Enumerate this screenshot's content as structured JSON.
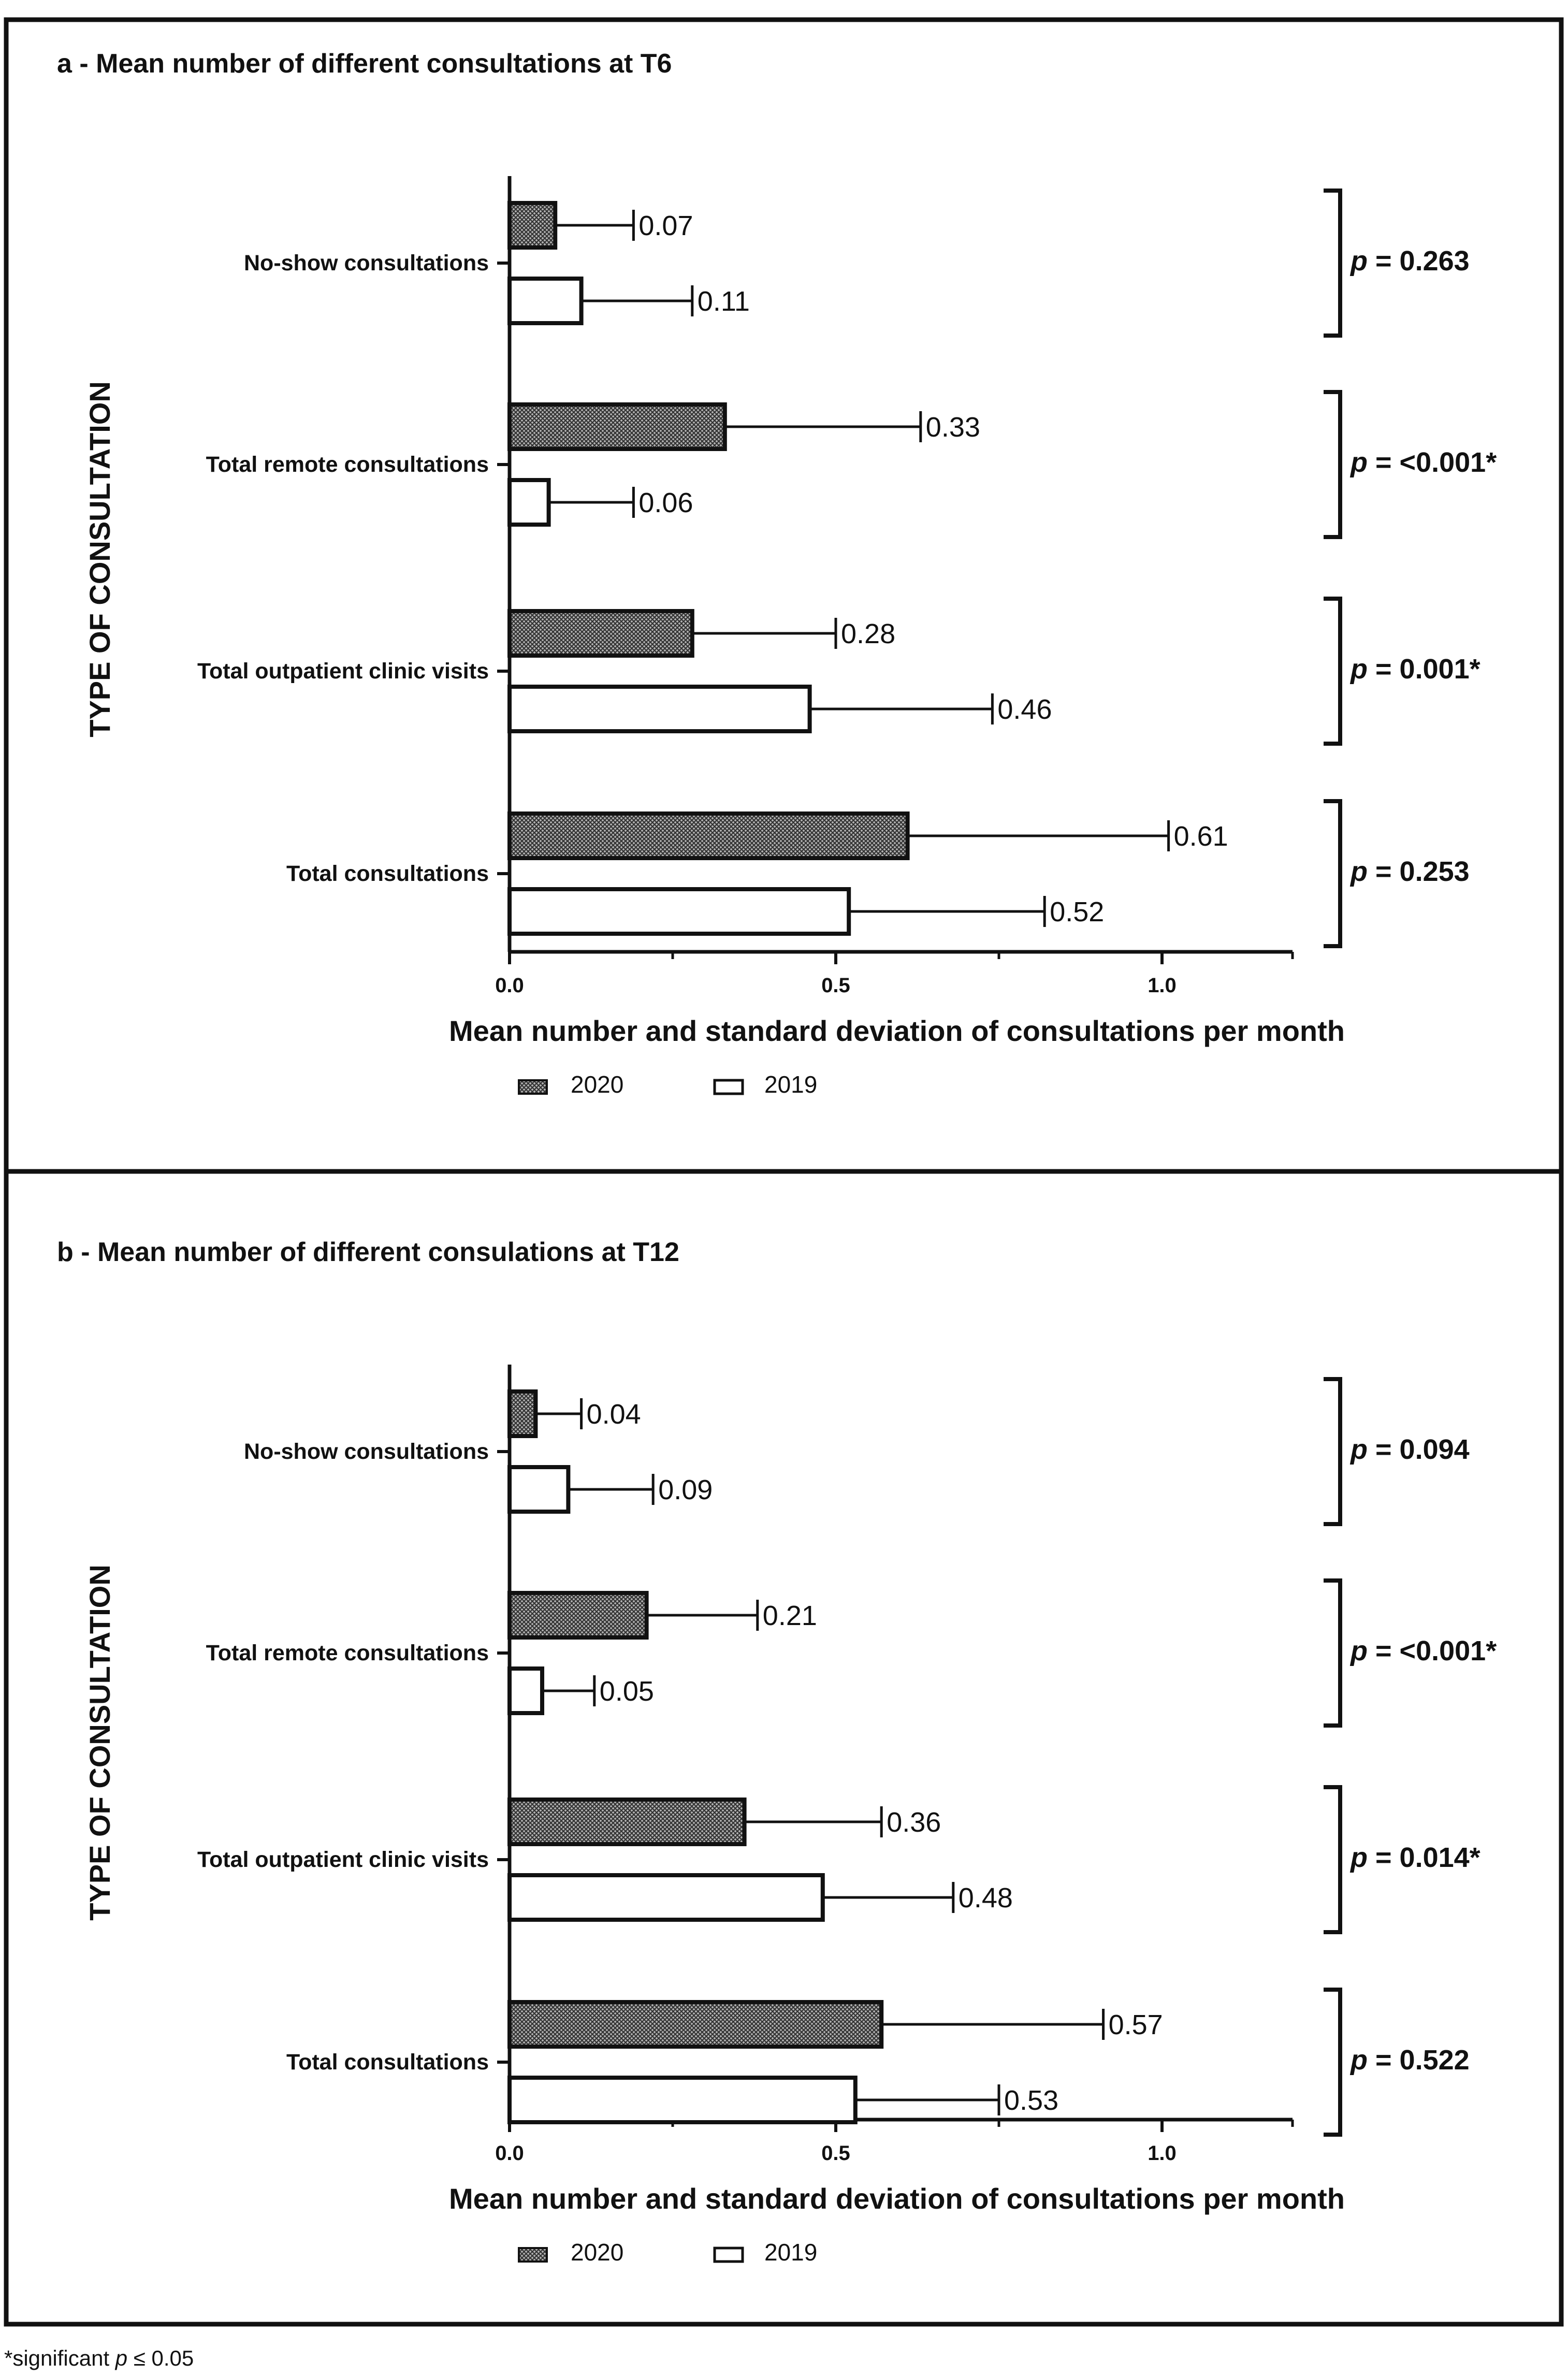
{
  "footnote": {
    "prefix": "*significant ",
    "p": "p",
    "suffix": " ≤ 0.05"
  },
  "legend_labels": [
    "2020",
    "2019"
  ],
  "colors": {
    "bar_2020_fill": "#8a8a8a",
    "bar_2019_fill": "#ffffff",
    "stroke": "#111111"
  },
  "chart_data": [
    {
      "type": "bar",
      "orientation": "horizontal",
      "title": "a - Mean number of different consultations at T6",
      "xlabel": "Mean number and standard deviation of consultations per month",
      "ylabel": "TYPE OF CONSULTATION",
      "xlim": [
        0,
        1.2
      ],
      "xticks": [
        0.0,
        0.5,
        1.0
      ],
      "xtick_labels": [
        "0.0",
        "0.5",
        "1.0"
      ],
      "categories": [
        "No-show consultations",
        "Total remote consultations",
        "Total outpatient clinic visits",
        "Total consultations"
      ],
      "series": [
        {
          "name": "2020",
          "pattern": "crosshatch",
          "values": [
            0.07,
            0.33,
            0.28,
            0.61
          ],
          "error_upper": [
            0.19,
            0.63,
            0.5,
            1.01
          ],
          "labels": [
            "0.07",
            "0.33",
            "0.28",
            "0.61"
          ]
        },
        {
          "name": "2019",
          "pattern": "none",
          "values": [
            0.11,
            0.06,
            0.46,
            0.52
          ],
          "error_upper": [
            0.28,
            0.19,
            0.74,
            0.82
          ],
          "labels": [
            "0.11",
            "0.06",
            "0.46",
            "0.52"
          ]
        }
      ],
      "pvalues": [
        {
          "value": "0.263",
          "significant": false
        },
        {
          "value": "<0.001*",
          "significant": true
        },
        {
          "value": "0.001*",
          "significant": true
        },
        {
          "value": "0.253",
          "significant": false
        }
      ]
    },
    {
      "type": "bar",
      "orientation": "horizontal",
      "title": "b - Mean number of different consulations at T12",
      "xlabel": "Mean number and standard deviation of consultations per month",
      "ylabel": "TYPE OF CONSULTATION",
      "xlim": [
        0,
        1.2
      ],
      "xticks": [
        0.0,
        0.5,
        1.0
      ],
      "xtick_labels": [
        "0.0",
        "0.5",
        "1.0"
      ],
      "categories": [
        "No-show consultations",
        "Total remote consultations",
        "Total outpatient clinic visits",
        "Total consultations"
      ],
      "series": [
        {
          "name": "2020",
          "pattern": "crosshatch",
          "values": [
            0.04,
            0.21,
            0.36,
            0.57
          ],
          "error_upper": [
            0.11,
            0.38,
            0.57,
            0.91
          ],
          "labels": [
            "0.04",
            "0.21",
            "0.36",
            "0.57"
          ]
        },
        {
          "name": "2019",
          "pattern": "none",
          "values": [
            0.09,
            0.05,
            0.48,
            0.53
          ],
          "error_upper": [
            0.22,
            0.13,
            0.68,
            0.75
          ],
          "labels": [
            "0.09",
            "0.05",
            "0.48",
            "0.53"
          ]
        }
      ],
      "pvalues": [
        {
          "value": "0.094",
          "significant": false
        },
        {
          "value": "<0.001*",
          "significant": true
        },
        {
          "value": "0.014*",
          "significant": true
        },
        {
          "value": "0.522",
          "significant": false
        }
      ]
    }
  ]
}
